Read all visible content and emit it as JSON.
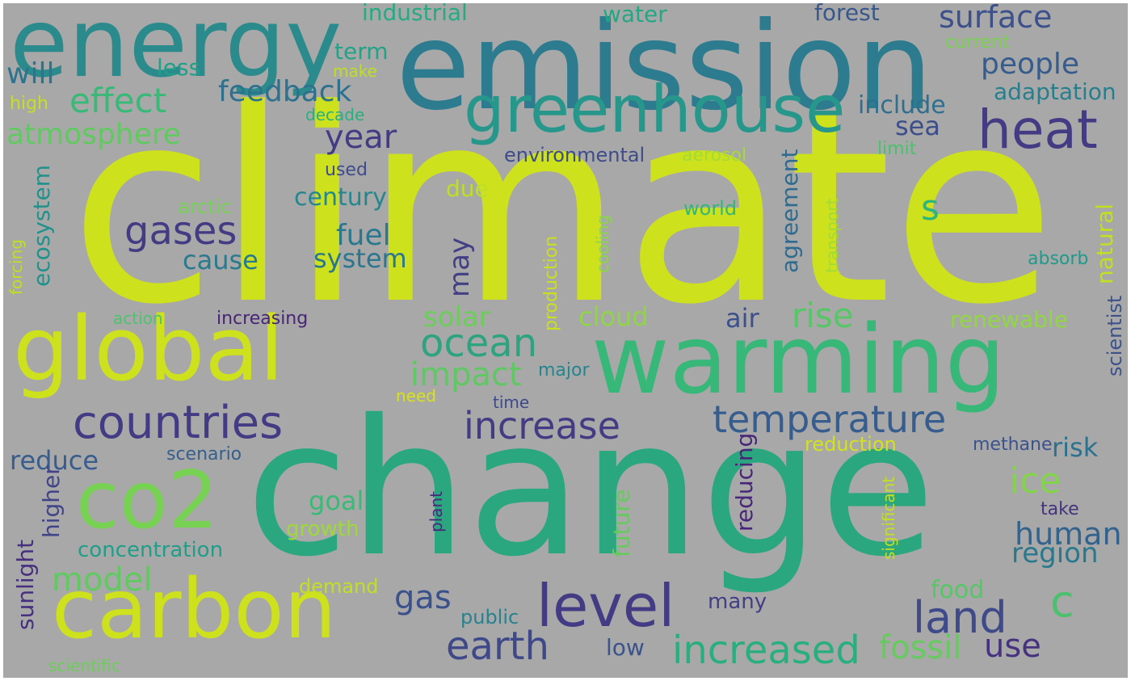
{
  "wordcloud": {
    "background": "#a8a8a8",
    "words": [
      {
        "text": "climate",
        "color": "#cde11d"
      },
      {
        "text": "change",
        "color": "#2aa77e"
      },
      {
        "text": "emission",
        "color": "#2c7b8e"
      },
      {
        "text": "warming",
        "color": "#37b878"
      },
      {
        "text": "energy",
        "color": "#2b8b8c"
      },
      {
        "text": "global",
        "color": "#cde11d"
      },
      {
        "text": "carbon",
        "color": "#cde11d"
      },
      {
        "text": "greenhouse",
        "color": "#27978b"
      },
      {
        "text": "co2",
        "color": "#77d153"
      },
      {
        "text": "countries",
        "color": "#433c84"
      },
      {
        "text": "heat",
        "color": "#433c84"
      },
      {
        "text": "level",
        "color": "#433c84"
      },
      {
        "text": "land",
        "color": "#3f4a8a"
      },
      {
        "text": "increase",
        "color": "#433c84"
      },
      {
        "text": "temperature",
        "color": "#365d8d"
      },
      {
        "text": "increased",
        "color": "#29af7f"
      },
      {
        "text": "gases",
        "color": "#433c84"
      },
      {
        "text": "effect",
        "color": "#38b977"
      },
      {
        "text": "earth",
        "color": "#3f4889"
      },
      {
        "text": "ocean",
        "color": "#2da37f"
      },
      {
        "text": "atmosphere",
        "color": "#60ca60"
      },
      {
        "text": "surface",
        "color": "#3c508b"
      },
      {
        "text": "people",
        "color": "#365c8d"
      },
      {
        "text": "impact",
        "color": "#5ec962"
      },
      {
        "text": "feedback",
        "color": "#2d718e"
      },
      {
        "text": "model",
        "color": "#60ca60"
      },
      {
        "text": "human",
        "color": "#33638d"
      },
      {
        "text": "c",
        "color": "#4ac16d"
      },
      {
        "text": "s",
        "color": "#2fb47c"
      },
      {
        "text": "ice",
        "color": "#84d44b"
      },
      {
        "text": "rise",
        "color": "#56c667"
      },
      {
        "text": "fossil",
        "color": "#65cb5e"
      },
      {
        "text": "use",
        "color": "#46327e"
      },
      {
        "text": "gas",
        "color": "#3b518b"
      },
      {
        "text": "year",
        "color": "#433c84"
      },
      {
        "text": "fuel",
        "color": "#2a778e"
      },
      {
        "text": "system",
        "color": "#2a768e"
      },
      {
        "text": "will",
        "color": "#2c738e"
      },
      {
        "text": "sea",
        "color": "#3c4f8a"
      },
      {
        "text": "century",
        "color": "#24878e"
      },
      {
        "text": "reduce",
        "color": "#365d8d"
      },
      {
        "text": "region",
        "color": "#2a788e"
      },
      {
        "text": "risk",
        "color": "#2c728e"
      },
      {
        "text": "cause",
        "color": "#297a8e"
      },
      {
        "text": "include",
        "color": "#2e6e8e"
      },
      {
        "text": "solar",
        "color": "#6ccd5a"
      },
      {
        "text": "goal",
        "color": "#3aba76"
      },
      {
        "text": "food",
        "color": "#56c667"
      },
      {
        "text": "cloud",
        "color": "#8ed645"
      },
      {
        "text": "may",
        "color": "#423f85"
      },
      {
        "text": "concentration",
        "color": "#1f9e89"
      },
      {
        "text": "air",
        "color": "#3c508b"
      },
      {
        "text": "industrial",
        "color": "#25ab82"
      },
      {
        "text": "water",
        "color": "#22a884"
      },
      {
        "text": "forest",
        "color": "#38588c"
      },
      {
        "text": "ecosystem",
        "color": "#21918c"
      },
      {
        "text": "agreement",
        "color": "#2f6b8e"
      },
      {
        "text": "natural",
        "color": "#c0df25"
      },
      {
        "text": "reducing",
        "color": "#482677"
      },
      {
        "text": "higher",
        "color": "#414487"
      },
      {
        "text": "sunlight",
        "color": "#46307e"
      },
      {
        "text": "many",
        "color": "#423f85"
      },
      {
        "text": "renewable",
        "color": "#90d743"
      },
      {
        "text": "adaptation",
        "color": "#277f8e"
      },
      {
        "text": "less",
        "color": "#1fa088"
      },
      {
        "text": "term",
        "color": "#20a386"
      },
      {
        "text": "due",
        "color": "#bddf26"
      },
      {
        "text": "future",
        "color": "#65cb5e"
      },
      {
        "text": "low",
        "color": "#3b528b"
      },
      {
        "text": "growth",
        "color": "#9dd93b"
      },
      {
        "text": "arctic",
        "color": "#75d054"
      },
      {
        "text": "scientist",
        "color": "#3b528b"
      },
      {
        "text": "world",
        "color": "#34b679"
      },
      {
        "text": "public",
        "color": "#26828e"
      },
      {
        "text": "demand",
        "color": "#c2df23"
      },
      {
        "text": "scenario",
        "color": "#35608d"
      },
      {
        "text": "used",
        "color": "#3e4c8a"
      },
      {
        "text": "production",
        "color": "#c8e020"
      },
      {
        "text": "increasing",
        "color": "#482475"
      },
      {
        "text": "environmental",
        "color": "#3e4c8a"
      },
      {
        "text": "transport",
        "color": "#a2da37"
      },
      {
        "text": "cooling",
        "color": "#8bd646"
      },
      {
        "text": "reduction",
        "color": "#d2e21b"
      },
      {
        "text": "current",
        "color": "#7ad151"
      },
      {
        "text": "major",
        "color": "#25858e"
      },
      {
        "text": "methane",
        "color": "#3b528b"
      },
      {
        "text": "absorb",
        "color": "#1f9a8a"
      },
      {
        "text": "significant",
        "color": "#c2df23"
      },
      {
        "text": "take",
        "color": "#46337f"
      },
      {
        "text": "forcing",
        "color": "#bddf26"
      },
      {
        "text": "aerosol",
        "color": "#a5db36"
      },
      {
        "text": "limit",
        "color": "#4ac16d"
      },
      {
        "text": "make",
        "color": "#bddf26"
      },
      {
        "text": "high",
        "color": "#c5e021"
      },
      {
        "text": "decade",
        "color": "#29af7f"
      },
      {
        "text": "action",
        "color": "#4ec36b"
      },
      {
        "text": "need",
        "color": "#d8e219"
      },
      {
        "text": "time",
        "color": "#3e4989"
      },
      {
        "text": "plant",
        "color": "#482878"
      },
      {
        "text": "scientific",
        "color": "#6ccd5a"
      }
    ]
  }
}
